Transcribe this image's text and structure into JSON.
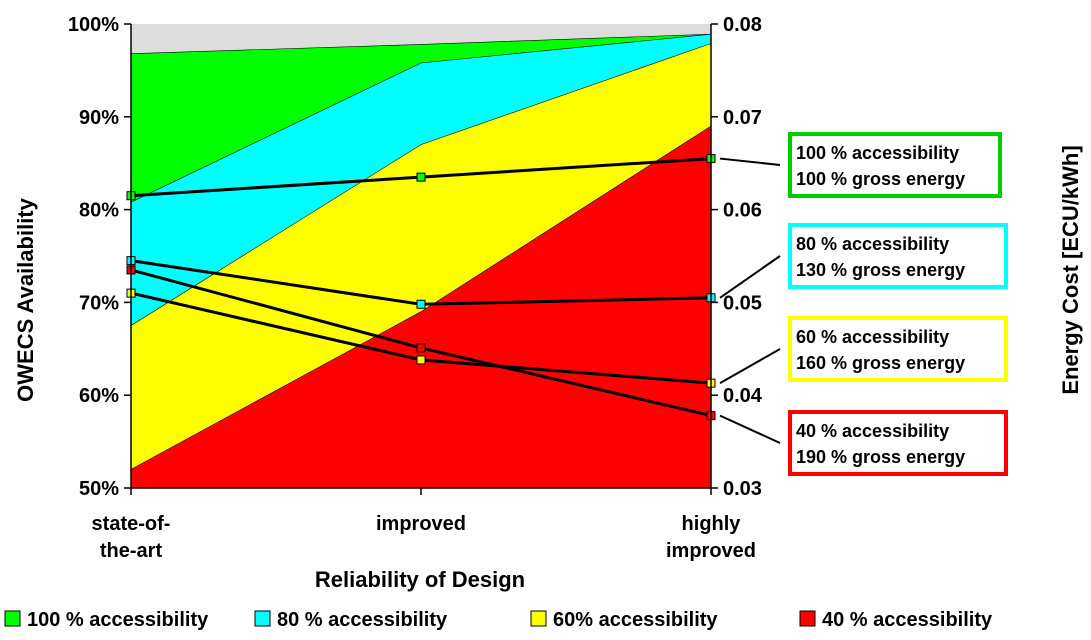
{
  "chart_data": {
    "type": "area",
    "xlabel": "Reliability of Design",
    "ylabel": "OWECS Availability",
    "y2label": "Energy Cost [ECU/kWh]",
    "categories": [
      [
        "state-of-",
        "the-art"
      ],
      [
        "improved"
      ],
      [
        "highly",
        "improved"
      ]
    ],
    "ylim": [
      0.5,
      1.0
    ],
    "y2lim": [
      0.03,
      0.08
    ],
    "yticks": [
      "50%",
      "60%",
      "70%",
      "80%",
      "90%",
      "100%"
    ],
    "y2ticks": [
      "0.03",
      "0.04",
      "0.05",
      "0.06",
      "0.07",
      "0.08"
    ],
    "availability_series": [
      {
        "name": "100 %  accessibility",
        "values": [
          0.968,
          0.978,
          0.989
        ],
        "color": "#00ff00"
      },
      {
        "name": "80 % accessibility",
        "values": [
          0.808,
          0.958,
          0.989
        ],
        "color": "#00ffff"
      },
      {
        "name": "60% accessibility",
        "values": [
          0.675,
          0.87,
          0.979
        ],
        "color": "#ffff00"
      },
      {
        "name": "40 % accessibility",
        "values": [
          0.52,
          0.69,
          0.89
        ],
        "color": "#ff0000"
      }
    ],
    "top_fill_color": "#dddddd",
    "cost_series": [
      {
        "box": [
          "100 %  accessibility",
          "100 % gross energy"
        ],
        "values": [
          0.0615,
          0.0635,
          0.0655
        ],
        "color": "#00cc00",
        "marker_color": "#00ff00"
      },
      {
        "box": [
          "80 %  accessibility",
          "130 % gross energy"
        ],
        "values": [
          0.0545,
          0.0498,
          0.0505
        ],
        "color": "#00ffff",
        "marker_color": "#00ffff"
      },
      {
        "box": [
          "60 %  accessibility",
          "160 % gross energy"
        ],
        "values": [
          0.051,
          0.0438,
          0.0413
        ],
        "color": "#ffff00",
        "marker_color": "#ffff00"
      },
      {
        "box": [
          "40 %  accessibility",
          "190 % gross energy"
        ],
        "values": [
          0.0535,
          0.0451,
          0.0378
        ],
        "color": "#ff0000",
        "marker_color": "#ff0000"
      }
    ],
    "legend": [
      {
        "label": "100 %  accessibility",
        "color": "#00ff00"
      },
      {
        "label": "80 % accessibility",
        "color": "#00ffff"
      },
      {
        "label": "60% accessibility",
        "color": "#ffff00"
      },
      {
        "label": "40 % accessibility",
        "color": "#ff0000"
      }
    ],
    "grid": false,
    "legend_position": "bottom"
  }
}
